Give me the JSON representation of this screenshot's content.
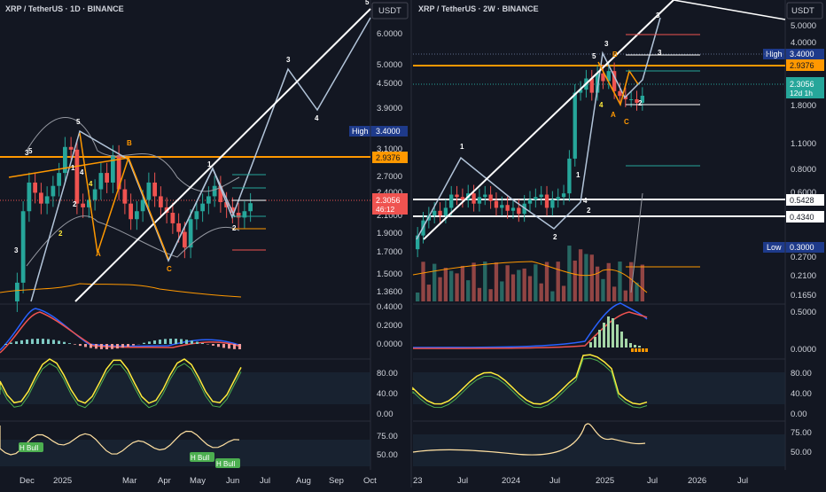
{
  "colors": {
    "bg": "#131722",
    "panel": "#1e222d",
    "grid": "#2a2e39",
    "up": "#26a69a",
    "down": "#ef5350",
    "orange": "#ff9800",
    "yellow": "#ffeb3b",
    "wave": "#b2c4d9",
    "blue": "#2962ff"
  },
  "currency": "USDT",
  "left": {
    "title": "XRP / TetherUS · 1D · BINANCE",
    "price_ticks": [
      "6.0000",
      "5.0000",
      "4.5000",
      "3.9000",
      "3.4000",
      "3.1000",
      "2.7000",
      "2.4000",
      "2.1000",
      "1.9000",
      "1.7000",
      "1.5000",
      "1.3600"
    ],
    "high_label": "High",
    "high_value": "3.4000",
    "orange_value": "2.9376",
    "last_value": "2.3056",
    "last_sub": "46:12",
    "macd_ticks": [
      "0.4000",
      "0.2000",
      "0.0000"
    ],
    "stoch_ticks": [
      "80.00",
      "40.00",
      "0.00"
    ],
    "rsi_ticks": [
      "75.00",
      "50.00"
    ],
    "x_labels": [
      "Dec",
      "2025",
      "Mar",
      "Apr",
      "May",
      "Jun",
      "Jul",
      "Aug",
      "Sep",
      "Oct"
    ],
    "wave_labels": [
      "3",
      "5",
      "3",
      "5",
      "1",
      "4",
      "2",
      "4",
      "2",
      "B",
      "A",
      "C",
      "1",
      "2",
      "3",
      "4",
      "5"
    ],
    "bull_labels": [
      "H Bull",
      "H Bull",
      "H Bull"
    ]
  },
  "right": {
    "title": "XRP / TetherUS · 2W · BINANCE",
    "price_ticks": [
      "5.0000",
      "4.0000",
      "3.4000",
      "2.9376",
      "1.8000",
      "1.1000",
      "0.8000",
      "0.6000",
      "0.3000",
      "0.2700",
      "0.2100",
      "0.1650"
    ],
    "high_label": "High",
    "high_value": "3.4000",
    "orange_value": "2.9376",
    "last_value": "2.3056",
    "last_sub": "12d 1h",
    "line1_value": "0.5428",
    "line2_value": "0.4340",
    "low_label": "Low",
    "low_value": "0.3000",
    "macd_ticks": [
      "0.5000",
      "0.0000"
    ],
    "stoch_ticks": [
      "80.00",
      "40.00",
      "0.00"
    ],
    "rsi_ticks": [
      "75.00",
      "50.00"
    ],
    "x_labels": [
      "23",
      "Jul",
      "2024",
      "Jul",
      "2025",
      "Jul",
      "2026",
      "Jul"
    ],
    "wave_labels": [
      "1",
      "2",
      "1",
      "2",
      "3",
      "5",
      "3",
      "B",
      "4",
      "A",
      "C",
      "2",
      "3",
      "4"
    ]
  },
  "chart_data": [
    {
      "type": "candlestick",
      "title": "XRP / TetherUS · 1D · BINANCE",
      "currency": "USDT",
      "x_labels": [
        "Dec",
        "2025",
        "Mar",
        "Apr",
        "May",
        "Jun",
        "Jul",
        "Aug",
        "Sep",
        "Oct"
      ],
      "high": 3.4,
      "last": 2.3056,
      "level": 2.9376,
      "ylim": [
        1.3,
        6.8
      ],
      "scale": "log",
      "close_series": [
        1.45,
        2.2,
        2.6,
        2.45,
        2.3,
        2.4,
        2.55,
        2.75,
        3.2,
        3.15,
        2.3,
        2.25,
        2.35,
        2.5,
        2.75,
        2.6,
        3.05,
        2.5,
        2.3,
        2.1,
        2.2,
        2.35,
        2.6,
        2.4,
        2.25,
        2.18,
        2.05,
        1.95,
        1.78,
        2.1,
        2.2,
        2.3,
        2.4,
        2.55,
        2.32,
        2.25,
        2.18,
        2.12,
        2.2,
        2.3056
      ]
    },
    {
      "type": "candlestick",
      "title": "XRP / TetherUS · 2W · BINANCE",
      "currency": "USDT",
      "x_labels": [
        "23",
        "Jul",
        "2024",
        "Jul",
        "2025",
        "Jul",
        "2026",
        "Jul"
      ],
      "high": 3.4,
      "low": 0.3,
      "last": 2.3056,
      "levels": [
        2.9376,
        0.5428,
        0.434
      ],
      "ylim": [
        0.15,
        6.5
      ],
      "scale": "log",
      "close_series": [
        0.36,
        0.44,
        0.47,
        0.5,
        0.47,
        0.52,
        0.62,
        0.6,
        0.58,
        0.63,
        0.55,
        0.6,
        0.62,
        0.57,
        0.52,
        0.54,
        0.5,
        0.52,
        0.48,
        0.55,
        0.58,
        0.6,
        0.62,
        0.52,
        0.58,
        0.6,
        0.63,
        1.0,
        2.4,
        2.5,
        2.9,
        2.4,
        3.1,
        2.8,
        3.2,
        2.45,
        2.3,
        2.2,
        2.2,
        2.1,
        2.3056
      ]
    }
  ]
}
